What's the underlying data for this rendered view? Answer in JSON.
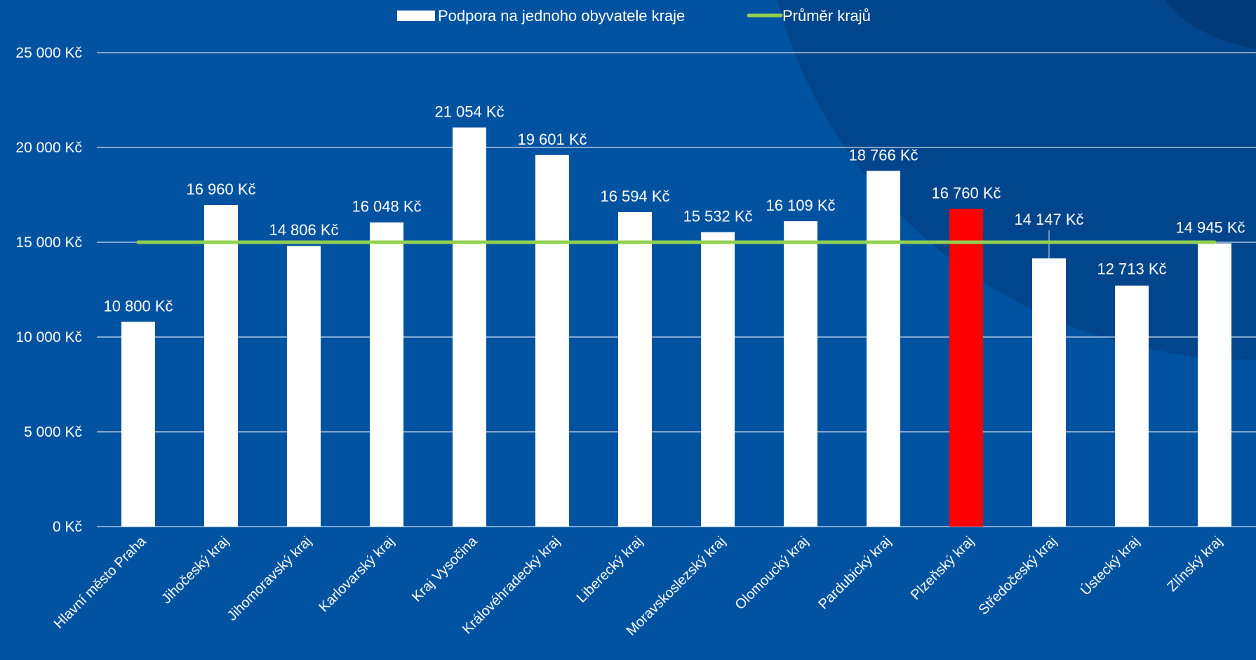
{
  "chart_data": {
    "type": "bar",
    "categories": [
      "Hlavní město Praha",
      "Jihočeský kraj",
      "Jihomoravský kraj",
      "Karlovarský kraj",
      "Kraj Vysočina",
      "Královéhradecký kraj",
      "Liberecký kraj",
      "Moravskoslezský kraj",
      "Olomoucký kraj",
      "Pardubický kraj",
      "Plzeňský kraj",
      "Středočeský kraj",
      "Ústecký kraj",
      "Zlínský kraj"
    ],
    "series": [
      {
        "name": "Podpora na jednoho obyvatele kraje",
        "type": "bar",
        "values": [
          10800,
          16960,
          14806,
          16048,
          21054,
          19601,
          16594,
          15532,
          16109,
          18766,
          16760,
          14147,
          12713,
          14945
        ],
        "value_labels": [
          "10 800 Kč",
          "16 960 Kč",
          "14 806 Kč",
          "16 048 Kč",
          "21 054 Kč",
          "19 601 Kč",
          "16 594 Kč",
          "15 532 Kč",
          "16 109 Kč",
          "18 766 Kč",
          "16 760 Kč",
          "14 147 Kč",
          "12 713 Kč",
          "14 945 Kč"
        ],
        "color": "#ffffff",
        "highlight_index": 10,
        "highlight_color": "#ff0000"
      },
      {
        "name": "Průměr krajů",
        "type": "line",
        "value": 15000,
        "color": "#92d050"
      }
    ],
    "ylim": [
      0,
      25000
    ],
    "yticks": [
      0,
      5000,
      10000,
      15000,
      20000,
      25000
    ],
    "ytick_labels": [
      "0 Kč",
      "5 000 Kč",
      "10 000 Kč",
      "15 000 Kč",
      "20 000 Kč",
      "25 000 Kč"
    ],
    "legend_position": "top-center",
    "grid": true,
    "colors": {
      "background": "#0153a1",
      "decor": "#01468c",
      "grid": "#d0dcec",
      "text": "#ffffff"
    }
  }
}
